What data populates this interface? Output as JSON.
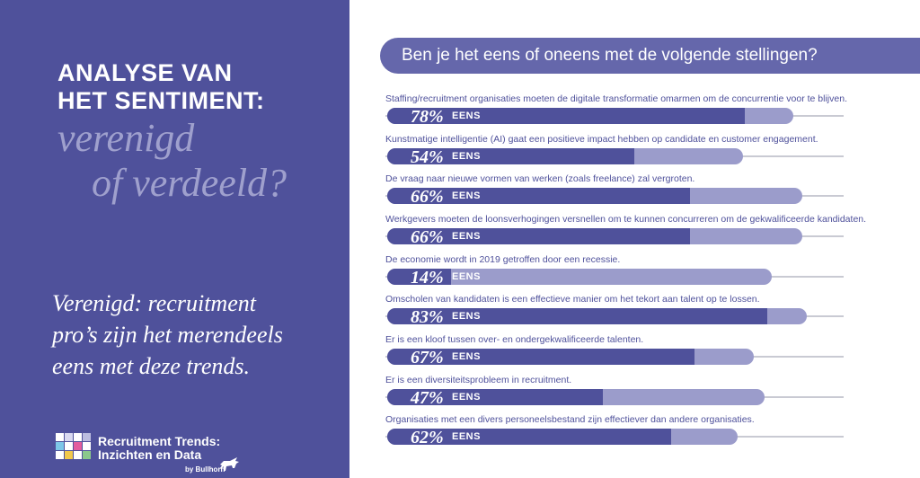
{
  "left_panel": {
    "title_line1": "ANALYSE VAN",
    "title_line2": "HET SENTIMENT:",
    "italic_line1": "verenigd",
    "italic_line2": "of verdeeld?",
    "subtext_line1": "Verenigd: recruitment",
    "subtext_line2": "pro’s zijn het merendeels",
    "subtext_line3": "eens met deze trends.",
    "brand_line1": "Recruitment Trends:",
    "brand_line2": "Inzichten en Data",
    "by_line": "by Bullhorn"
  },
  "colors": {
    "panel": "#4f519b",
    "header": "#6567ab",
    "bar_fill": "#4f519b",
    "bar_rest": "#9b9ccb",
    "accent_text": "#9fa0cd"
  },
  "chart_data": {
    "type": "bar",
    "title": "Ben je het eens of oneens met de volgende stellingen?",
    "value_label": "EENS",
    "categories": [
      "Staffing/recruitment organisaties moeten de digitale transformatie omarmen om de concurrentie voor te blijven.",
      "Kunstmatige intelligentie (AI) gaat een positieve impact hebben op candidate en customer engagement.",
      "De vraag naar nieuwe vormen van werken (zoals freelance) zal vergroten.",
      "Werkgevers moeten de loonsverhogingen versnellen om te kunnen concurreren om de gekwalificeerde kandidaten.",
      "De economie wordt in 2019 getroffen door een recessie.",
      "Omscholen van kandidaten is een effectieve manier om het tekort aan talent op te lossen.",
      "Er is een kloof tussen over- en ondergekwalificeerde talenten.",
      "Er is een diversiteitsprobleem in recruitment.",
      "Organisaties met een divers personeelsbestand zijn effectiever dan andere organisaties."
    ],
    "values": [
      78,
      54,
      66,
      66,
      14,
      83,
      67,
      47,
      62
    ],
    "value_labels": [
      "78%",
      "54%",
      "66%",
      "66%",
      "14%",
      "83%",
      "67%",
      "47%",
      "62%"
    ],
    "xlim": [
      0,
      100
    ]
  }
}
